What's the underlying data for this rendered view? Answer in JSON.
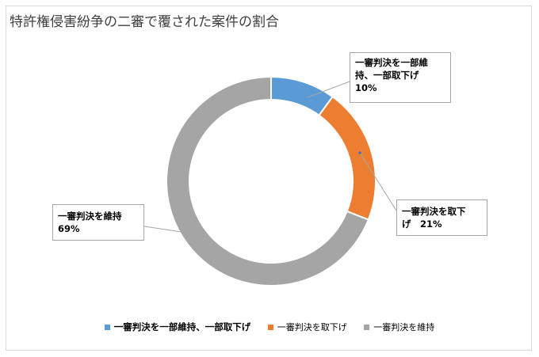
{
  "chart_data": {
    "type": "pie",
    "title": "特許権侵害紛争の二審で覆された案件の割合",
    "donut": true,
    "categories": [
      "一審判決を一部維持、一部取下げ",
      "一審判決を取下げ",
      "一審判決を維持"
    ],
    "values": [
      10,
      21,
      69
    ],
    "colors": [
      "#5b9bd5",
      "#ed7d31",
      "#a5a5a5"
    ],
    "data_labels": [
      {
        "line1": "一審判決を一部維",
        "line2": "持、一部取下げ",
        "pct": "10%"
      },
      {
        "line1": "一審判決を取下",
        "line2": "げ　21%",
        "pct": ""
      },
      {
        "line1": "一審判決を維持",
        "line2": "",
        "pct": "69%"
      }
    ],
    "legend_position": "bottom"
  }
}
